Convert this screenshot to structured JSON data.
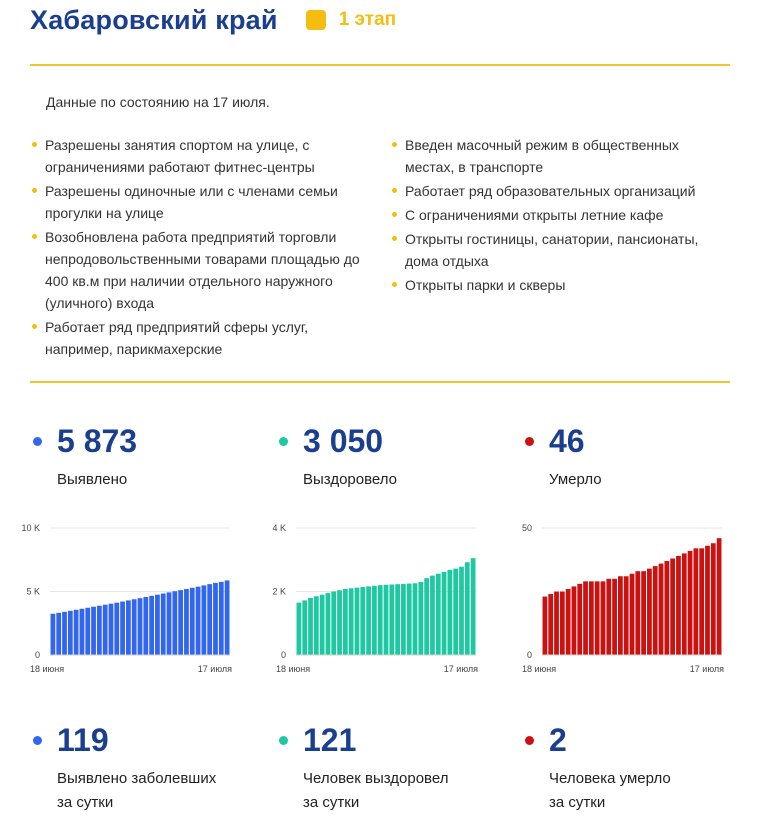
{
  "header": {
    "title": "Хабаровский край",
    "stage": "1 этап",
    "stage_color": "#f5bd10"
  },
  "as_of": "Данные по состоянию на 17 июля.",
  "measures_left": [
    "Разрешены занятия спортом на улице, с ограничениями работают фитнес-центры",
    "Разрешены одиночные или с членами семьи прогулки на улице",
    "Возобновлена работа предприятий торговли непродовольственными товарами площадью до 400 кв.м при наличии отдельного наружного (уличного) входа",
    "Работает ряд предприятий сферы услуг, например, парикмахерские"
  ],
  "measures_right": [
    "Введен масочный режим в общественных местах, в транспорте",
    "Работает ряд образовательных организаций",
    "С ограничениями открыты летние кафе",
    "Открыты гостиницы, санатории, пансионаты, дома отдыха",
    "Открыты парки и скверы"
  ],
  "totals": [
    {
      "value": "5 873",
      "label": "Выявлено",
      "color": "#3366ee"
    },
    {
      "value": "3 050",
      "label": "Выздоровело",
      "color": "#1ec9a1"
    },
    {
      "value": "46",
      "label": "Умерло",
      "color": "#cc1111"
    }
  ],
  "daily": [
    {
      "value": "119",
      "label_line1": "Выявлено заболевших",
      "label_line2": "за сутки",
      "color": "#3366ee"
    },
    {
      "value": "121",
      "label_line1": "Человек выздоровел",
      "label_line2": "за сутки",
      "color": "#1ec9a1"
    },
    {
      "value": "2",
      "label_line1": "Человека умерло",
      "label_line2": "за сутки",
      "color": "#cc1111"
    }
  ],
  "chart_data": [
    {
      "type": "bar",
      "x_start": "18 июня",
      "x_end": "17 июля",
      "ylim": [
        0,
        10000
      ],
      "y_ticks": [
        0,
        5000,
        10000
      ],
      "y_tick_labels": [
        "0",
        "5 K",
        "10 K"
      ],
      "grid": true,
      "color": "#3366ee",
      "values": [
        3250,
        3320,
        3400,
        3480,
        3560,
        3640,
        3720,
        3800,
        3880,
        3960,
        4040,
        4120,
        4210,
        4300,
        4390,
        4480,
        4570,
        4660,
        4750,
        4840,
        4930,
        5020,
        5110,
        5200,
        5290,
        5380,
        5480,
        5580,
        5680,
        5760,
        5873
      ]
    },
    {
      "type": "bar",
      "x_start": "18 июня",
      "x_end": "17 июля",
      "ylim": [
        0,
        4000
      ],
      "y_ticks": [
        0,
        2000,
        4000
      ],
      "y_tick_labels": [
        "0",
        "2 K",
        "4 K"
      ],
      "grid": true,
      "color": "#1ec9a1",
      "values": [
        1650,
        1720,
        1800,
        1850,
        1900,
        1950,
        2000,
        2040,
        2080,
        2100,
        2120,
        2140,
        2160,
        2180,
        2200,
        2210,
        2220,
        2230,
        2240,
        2250,
        2260,
        2300,
        2420,
        2500,
        2560,
        2620,
        2680,
        2720,
        2780,
        2920,
        3050
      ]
    },
    {
      "type": "bar",
      "x_start": "18 июня",
      "x_end": "17 июля",
      "ylim": [
        0,
        50
      ],
      "y_ticks": [
        0,
        50
      ],
      "y_tick_labels": [
        "0",
        "50"
      ],
      "grid": true,
      "color": "#cc1111",
      "values": [
        23,
        24,
        25,
        25,
        26,
        27,
        28,
        29,
        29,
        29,
        29,
        30,
        30,
        31,
        31,
        32,
        33,
        33,
        34,
        35,
        36,
        37,
        38,
        39,
        40,
        41,
        42,
        42,
        43,
        44,
        46
      ]
    }
  ]
}
